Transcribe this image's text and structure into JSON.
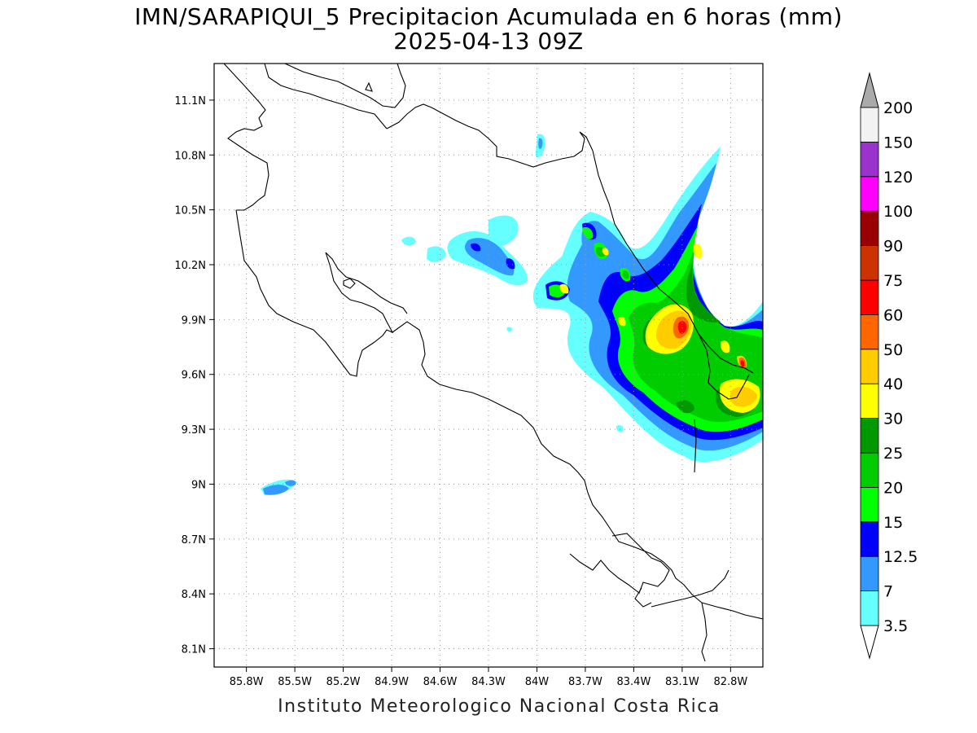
{
  "title": {
    "line1": "IMN/SARAPIQUI_5 Precipitacion Acumulada en 6 horas (mm)",
    "line2": "2025-04-13 09Z"
  },
  "credit": "Instituto Meteorologico Nacional Costa Rica",
  "map": {
    "lon_range": [
      -86.0,
      -82.6
    ],
    "lat_range": [
      8.0,
      11.3
    ],
    "lon_ticks": [
      {
        "value": -85.8,
        "label": "85.8W"
      },
      {
        "value": -85.5,
        "label": "85.5W"
      },
      {
        "value": -85.2,
        "label": "85.2W"
      },
      {
        "value": -84.9,
        "label": "84.9W"
      },
      {
        "value": -84.6,
        "label": "84.6W"
      },
      {
        "value": -84.3,
        "label": "84.3W"
      },
      {
        "value": -84.0,
        "label": "84W"
      },
      {
        "value": -83.7,
        "label": "83.7W"
      },
      {
        "value": -83.4,
        "label": "83.4W"
      },
      {
        "value": -83.1,
        "label": "83.1W"
      },
      {
        "value": -82.8,
        "label": "82.8W"
      }
    ],
    "lat_ticks": [
      {
        "value": 8.1,
        "label": "8.1N"
      },
      {
        "value": 8.4,
        "label": "8.4N"
      },
      {
        "value": 8.7,
        "label": "8.7N"
      },
      {
        "value": 9.0,
        "label": "9N"
      },
      {
        "value": 9.3,
        "label": "9.3N"
      },
      {
        "value": 9.6,
        "label": "9.6N"
      },
      {
        "value": 9.9,
        "label": "9.9N"
      },
      {
        "value": 10.2,
        "label": "10.2N"
      },
      {
        "value": 10.5,
        "label": "10.5N"
      },
      {
        "value": 10.8,
        "label": "10.8N"
      },
      {
        "value": 11.1,
        "label": "11.1N"
      }
    ],
    "grid": true
  },
  "colorbar": {
    "orientation": "vertical",
    "extend": "both",
    "levels": [
      {
        "label": "3.5",
        "color": "#66ffff"
      },
      {
        "label": "7",
        "color": "#3399ff"
      },
      {
        "label": "12.5",
        "color": "#0000ff"
      },
      {
        "label": "15",
        "color": "#00ff00"
      },
      {
        "label": "20",
        "color": "#00cc00"
      },
      {
        "label": "25",
        "color": "#009900"
      },
      {
        "label": "30",
        "color": "#ffff00"
      },
      {
        "label": "40",
        "color": "#ffcc00"
      },
      {
        "label": "50",
        "color": "#ff6600"
      },
      {
        "label": "60",
        "color": "#ff0000"
      },
      {
        "label": "75",
        "color": "#cc3300"
      },
      {
        "label": "90",
        "color": "#990000"
      },
      {
        "label": "100",
        "color": "#ff00ff"
      },
      {
        "label": "120",
        "color": "#9933cc"
      },
      {
        "label": "150",
        "color": "#f2f2f2"
      },
      {
        "label": "200",
        "color": "#aaaaaa"
      }
    ],
    "under_color": "#ffffff",
    "over_color": "#aaaaaa"
  }
}
